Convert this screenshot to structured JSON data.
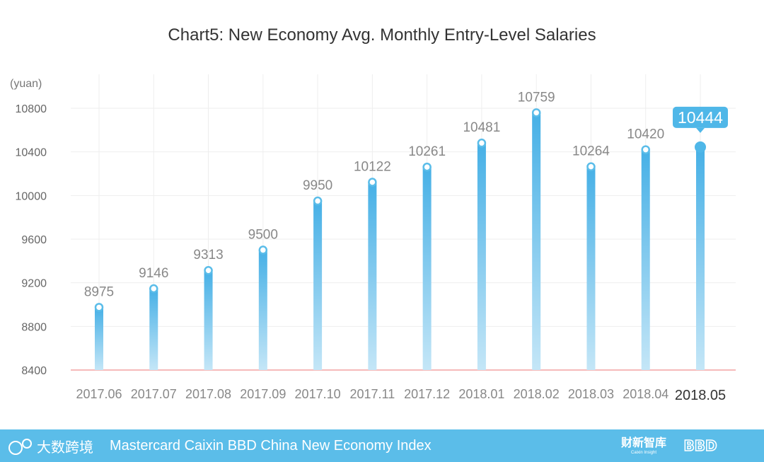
{
  "chart_data": {
    "type": "bar",
    "title": "Chart5:  New Economy Avg. Monthly Entry-Level Salaries",
    "ylabel": "(yuan)",
    "xlabel": "",
    "categories": [
      "2017.06",
      "2017.07",
      "2017.08",
      "2017.09",
      "2017.10",
      "2017.11",
      "2017.12",
      "2018.01",
      "2018.02",
      "2018.03",
      "2018.04",
      "2018.05"
    ],
    "values": [
      8975,
      9146,
      9313,
      9500,
      9950,
      10122,
      10261,
      10481,
      10759,
      10264,
      10420,
      10444
    ],
    "yticks": [
      8400,
      8800,
      9200,
      9600,
      10000,
      10400,
      10800
    ],
    "ylim": [
      8400,
      11000
    ],
    "highlight_index": 11,
    "grid": true,
    "colors": {
      "bar": "#5bbde9",
      "highlight": "#4fb7e8",
      "baseline": "#f4a3a3",
      "grid": "#eeeeee"
    }
  },
  "footer": {
    "text": "Mastercard Caixin BBD China New Economy Index",
    "logo_left": "大数跨境",
    "logo_caixin": "财新智库",
    "logo_caixin_sub": "Caixin Insight",
    "logo_bbd": "BBD",
    "background": "#5bbde9"
  }
}
